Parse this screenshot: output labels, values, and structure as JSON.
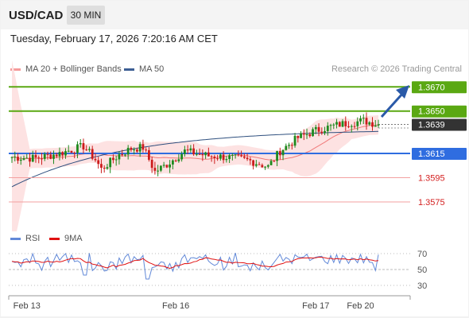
{
  "header": {
    "pair": "USD/CAD",
    "timeframe": "30 MIN"
  },
  "timestamp": "Tuesday, February 17, 2026 7:20:16 AM CET",
  "legend": {
    "bollinger": {
      "label": "MA 20 + Bollinger Bands",
      "color": "#f59a9a"
    },
    "ma50": {
      "label": "MA 50",
      "color": "#3d5f94"
    }
  },
  "credit": "Research © 2026 Trading Central",
  "rsi_legend": {
    "rsi": {
      "label": "RSI",
      "color": "#6289d8"
    },
    "ma9": {
      "label": "9MA",
      "color": "#e01010"
    }
  },
  "chart_data": {
    "type": "candlestick",
    "title": "USD/CAD",
    "x_ticks": [
      {
        "label": "Feb 13",
        "index": 5
      },
      {
        "label": "Feb 16",
        "index": 55
      },
      {
        "label": "Feb 17",
        "index": 102
      },
      {
        "label": "Feb 20",
        "index": 117
      }
    ],
    "price_range": [
      1.3552,
      1.3682
    ],
    "candle_count": 124,
    "levels": [
      {
        "value": 1.367,
        "label": "1.3670",
        "kind": "resistance",
        "color": "#5aa812",
        "text_color": "#ffffff"
      },
      {
        "value": 1.365,
        "label": "1.3650",
        "kind": "resistance",
        "color": "#5aa812",
        "text_color": "#ffffff"
      },
      {
        "value": 1.3639,
        "label": "1.3639",
        "kind": "last",
        "color": "#333333",
        "text_color": "#ffffff"
      },
      {
        "value": 1.3615,
        "label": "1.3615",
        "kind": "pivot",
        "color": "#2f6de0",
        "text_color": "#ffffff"
      },
      {
        "value": 1.3595,
        "label": "1.3595",
        "kind": "support",
        "color": "#f3a0a0",
        "text_color": "#d42020"
      },
      {
        "value": 1.3575,
        "label": "1.3575",
        "kind": "support",
        "color": "#f3a0a0",
        "text_color": "#d42020"
      }
    ],
    "rsi": {
      "ticks": [
        70,
        50,
        30
      ],
      "range": [
        18,
        80
      ],
      "overbought": 70,
      "oversold": 30
    },
    "colors": {
      "bull": "#1e8a1e",
      "bear": "#cc1c1c",
      "band_fill": "#fde2e2",
      "ma20": "#f07a7a",
      "ma50": "#2e4f7e",
      "arrow": "#2a5aa8"
    }
  }
}
